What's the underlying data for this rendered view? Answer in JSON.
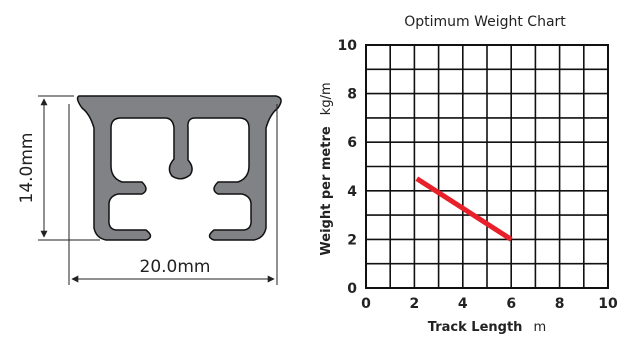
{
  "profile": {
    "height_label": "14.0mm",
    "width_label": "20.0mm",
    "colors": {
      "fill": "#808285",
      "outline": "#111111",
      "dim_line": "#222222"
    }
  },
  "chart_data": {
    "type": "line",
    "title": "Optimum Weight Chart",
    "xlabel": "Track Length",
    "xlabel_unit": "m",
    "ylabel": "Weight per metre",
    "ylabel_unit": "kg/m",
    "xlim": [
      0,
      10
    ],
    "ylim": [
      0,
      10
    ],
    "x_ticks": [
      0,
      2,
      4,
      6,
      8,
      10
    ],
    "y_ticks": [
      0,
      2,
      4,
      6,
      8,
      10
    ],
    "grid": true,
    "grid_step": 1,
    "series": [
      {
        "x": [
          2.1,
          6.0
        ],
        "y": [
          4.5,
          2.0
        ],
        "color": "#e8202a"
      }
    ]
  }
}
